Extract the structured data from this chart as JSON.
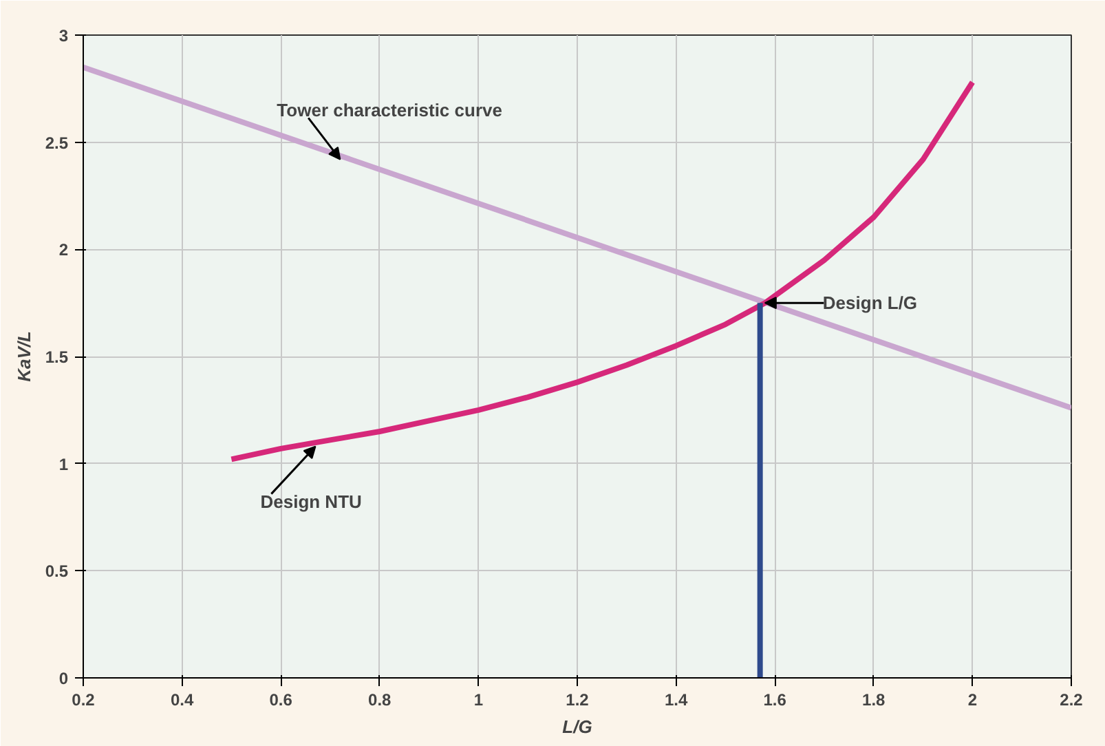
{
  "chart_data": {
    "type": "line",
    "xlabel": "L/G",
    "ylabel": "KaV/L",
    "xlim": [
      0.2,
      2.2
    ],
    "xticks": [
      0.2,
      0.4,
      0.6,
      0.8,
      1,
      1.2,
      1.4,
      1.6,
      1.8,
      2,
      2.2
    ],
    "ylim": [
      0,
      3
    ],
    "yticks": [
      0,
      0.5,
      1,
      1.5,
      2,
      2.5,
      3
    ],
    "grid": true,
    "series": [
      {
        "color": "#c9a6cf",
        "x": [
          0.2,
          2.2
        ],
        "values": [
          2.85,
          1.26
        ]
      },
      {
        "color": "#d6287a",
        "x": [
          0.5,
          0.6,
          0.7,
          0.8,
          0.9,
          1.0,
          1.1,
          1.2,
          1.3,
          1.4,
          1.5,
          1.58,
          1.7,
          1.8,
          1.9,
          2.0
        ],
        "values": [
          1.02,
          1.07,
          1.11,
          1.15,
          1.2,
          1.25,
          1.31,
          1.38,
          1.46,
          1.55,
          1.65,
          1.75,
          1.95,
          2.15,
          2.42,
          2.78
        ]
      },
      {
        "color": "#2e4a8c",
        "x": [
          1.57,
          1.57
        ],
        "values": [
          0,
          1.75
        ]
      }
    ],
    "annotations": [
      {
        "text": "Tower characteristic curve",
        "x": 0.72,
        "y": 2.42
      },
      {
        "text": "Design L/G",
        "x": 1.58,
        "y": 1.75
      },
      {
        "text": "Design NTU",
        "x": 0.67,
        "y": 1.08
      }
    ]
  }
}
